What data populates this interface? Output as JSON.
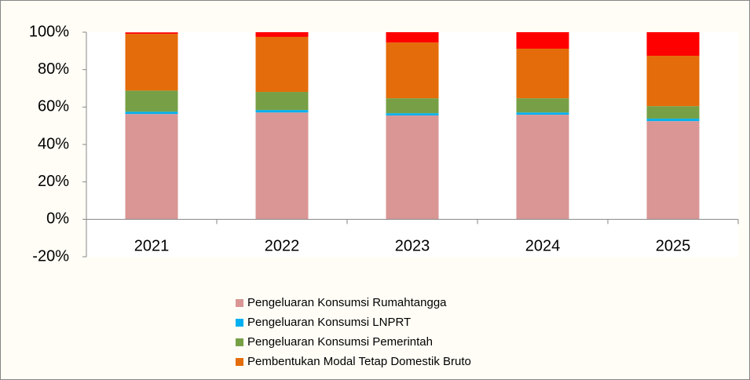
{
  "chart_data": {
    "type": "stacked_bar",
    "categories": [
      "2021",
      "2022",
      "2023",
      "2024",
      "2025"
    ],
    "series": [
      {
        "name": "Pengeluaran Konsumsi Rumahtangga",
        "color": "#d99694",
        "values": [
          56.3,
          57.1,
          55.5,
          55.9,
          52.5
        ]
      },
      {
        "name": "Pengeluaran Konsumsi LNPRT",
        "color": "#00b0f0",
        "values": [
          1.2,
          1.3,
          1.2,
          1.2,
          1.3
        ]
      },
      {
        "name": "Pengeluaran Konsumsi Pemerintah",
        "color": "#77a046",
        "values": [
          11.3,
          9.7,
          8.0,
          7.6,
          6.7
        ]
      },
      {
        "name": "Pembentukan Modal Tetap Domestik Bruto",
        "color": "#e46c0a",
        "values": [
          30.3,
          29.4,
          29.8,
          26.5,
          26.9
        ]
      },
      {
        "color": "#ff0000",
        "values": [
          0.8,
          2.5,
          5.5,
          8.8,
          12.6
        ]
      }
    ],
    "ylim": [
      -20,
      100
    ],
    "yticks": [
      {
        "value": -20,
        "label": "-20%"
      },
      {
        "value": 0,
        "label": "0%"
      },
      {
        "value": 20,
        "label": "20%"
      },
      {
        "value": 40,
        "label": "40%"
      },
      {
        "value": 60,
        "label": "60%"
      },
      {
        "value": 80,
        "label": "80%"
      },
      {
        "value": 100,
        "label": "100%"
      }
    ],
    "grid": false
  }
}
